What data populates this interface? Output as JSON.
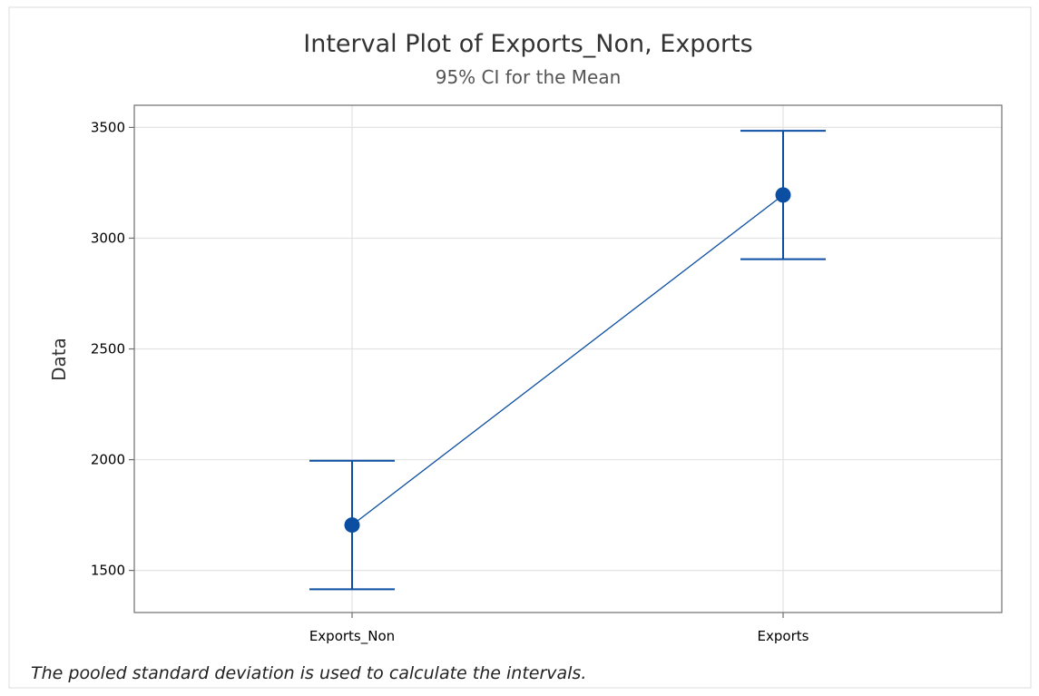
{
  "chart_data": {
    "type": "interval",
    "title": "Interval Plot of Exports_Non, Exports",
    "subtitle": "95% CI for the Mean",
    "ylabel": "Data",
    "xlabel": "",
    "categories": [
      "Exports_Non",
      "Exports"
    ],
    "series": [
      {
        "means": [
          1705,
          3195
        ],
        "lower": [
          1415,
          2905
        ],
        "upper": [
          1995,
          3485
        ]
      }
    ],
    "yticks": [
      1500,
      2000,
      2500,
      3000,
      3500
    ],
    "ylim": [
      1310,
      3600
    ],
    "grid": true,
    "footnote": "The pooled standard deviation is used to calculate the intervals.",
    "colors": {
      "series": "#0B4EA2",
      "grid": "#E3E3E3",
      "frame": "#6E6E6E"
    }
  }
}
